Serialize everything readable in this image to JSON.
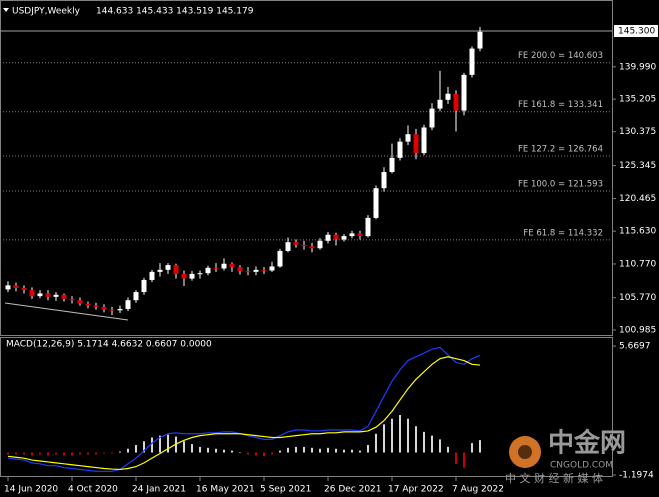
{
  "chart_data": [
    {
      "type": "candlestick",
      "title": "USDJPY,Weekly",
      "title_values": "144.633 145.433 143.519 145.179",
      "categories": [
        "14 Jun 2020",
        null,
        null,
        null,
        null,
        null,
        null,
        null,
        "4 Oct 2020",
        null,
        null,
        null,
        null,
        null,
        null,
        null,
        "24 Jan 2021",
        null,
        null,
        null,
        null,
        null,
        null,
        null,
        "16 May 2021",
        null,
        null,
        null,
        null,
        null,
        null,
        null,
        "5 Sep 2021",
        null,
        null,
        null,
        null,
        null,
        null,
        null,
        "26 Dec 2021",
        null,
        null,
        null,
        null,
        null,
        null,
        null,
        "17 Apr 2022",
        null,
        null,
        null,
        null,
        null,
        null,
        null,
        "7 Aug 2022",
        null,
        null,
        null
      ],
      "open": [
        107.0,
        107.6,
        107.2,
        106.9,
        106.0,
        106.4,
        105.9,
        106.2,
        105.6,
        105.4,
        104.9,
        104.6,
        104.4,
        104.0,
        103.9,
        104.1,
        105.4,
        106.6,
        108.4,
        109.6,
        109.9,
        110.6,
        109.3,
        108.6,
        109.3,
        109.4,
        110.2,
        110.1,
        110.8,
        110.3,
        109.7,
        109.6,
        109.9,
        109.8,
        110.4,
        112.7,
        114.0,
        113.6,
        113.4,
        113.1,
        114.2,
        115.1,
        114.4,
        114.9,
        115.3,
        114.9,
        117.6,
        122.0,
        124.4,
        126.5,
        128.9,
        130.0,
        127.2,
        131.0,
        133.8,
        135.1,
        136.0,
        133.5,
        138.8,
        142.7
      ],
      "high": [
        108.2,
        108.0,
        107.6,
        107.3,
        106.9,
        106.9,
        106.6,
        106.4,
        106.0,
        105.8,
        105.2,
        105.0,
        104.8,
        104.4,
        104.6,
        105.8,
        106.9,
        108.7,
        109.9,
        110.9,
        110.9,
        110.8,
        109.8,
        109.7,
        109.8,
        110.5,
        110.9,
        111.6,
        111.0,
        110.6,
        110.3,
        110.4,
        110.3,
        111.1,
        113.0,
        114.7,
        114.4,
        114.2,
        113.9,
        114.6,
        115.5,
        115.4,
        115.2,
        115.7,
        115.7,
        118.0,
        122.4,
        125.1,
        128.6,
        129.4,
        131.3,
        130.8,
        131.4,
        134.6,
        139.4,
        137.0,
        136.5,
        139.1,
        143.0,
        145.9
      ],
      "low": [
        106.6,
        106.7,
        106.4,
        105.6,
        105.7,
        105.4,
        105.3,
        105.2,
        104.9,
        104.6,
        104.2,
        104.0,
        103.6,
        103.2,
        103.5,
        103.8,
        105.0,
        106.2,
        108.1,
        108.9,
        109.3,
        108.6,
        107.5,
        108.3,
        108.6,
        109.1,
        109.6,
        109.8,
        109.6,
        109.2,
        109.1,
        109.1,
        109.3,
        109.6,
        110.2,
        112.5,
        113.2,
        112.9,
        112.5,
        112.9,
        113.8,
        113.5,
        114.1,
        114.6,
        114.4,
        114.7,
        117.4,
        121.5,
        124.2,
        126.1,
        128.4,
        126.3,
        126.9,
        130.6,
        133.4,
        134.5,
        130.4,
        132.8,
        138.4,
        142.3
      ],
      "close": [
        107.6,
        107.2,
        106.9,
        106.0,
        106.4,
        105.9,
        106.2,
        105.6,
        105.4,
        104.9,
        104.6,
        104.4,
        104.0,
        103.9,
        104.1,
        105.4,
        106.6,
        108.4,
        109.6,
        109.9,
        110.6,
        109.3,
        108.6,
        109.3,
        109.4,
        110.2,
        110.1,
        110.8,
        110.3,
        109.7,
        109.6,
        109.9,
        109.8,
        110.4,
        112.7,
        114.0,
        113.6,
        113.4,
        113.1,
        114.2,
        115.1,
        114.4,
        114.9,
        115.3,
        114.9,
        117.6,
        122.0,
        124.4,
        126.5,
        128.9,
        130.0,
        127.2,
        131.0,
        133.8,
        135.1,
        136.0,
        133.5,
        138.8,
        142.7,
        145.18
      ],
      "up_color": "#ffffff",
      "down_color": "#e00000",
      "ylim": [
        100.24,
        149.6
      ],
      "yticks": [
        {
          "value": 139.99,
          "label": "139.990"
        },
        {
          "value": 135.205,
          "label": "135.205"
        },
        {
          "value": 130.375,
          "label": "130.375"
        },
        {
          "value": 125.345,
          "label": "125.345"
        },
        {
          "value": 120.465,
          "label": "120.465"
        },
        {
          "value": 115.63,
          "label": "115.630"
        },
        {
          "value": 110.77,
          "label": "110.770"
        },
        {
          "value": 105.77,
          "label": "105.770"
        },
        {
          "value": 100.985,
          "label": "100.985"
        }
      ],
      "current_price": {
        "value": 145.3,
        "label": "145.300"
      },
      "levels": [
        {
          "value": 140.603,
          "label": "FE 200.0 = 140.603"
        },
        {
          "value": 133.341,
          "label": "FE 161.8 = 133.341"
        },
        {
          "value": 126.764,
          "label": "FE 127.2 = 126.764"
        },
        {
          "value": 121.593,
          "label": "FE 100.0 = 121.593"
        },
        {
          "value": 114.332,
          "label": "FE 61.8 = 114.332"
        }
      ]
    },
    {
      "type": "macd",
      "title": "MACD(12,26,9) 5.1714 4.6632 0.6607 0.0000",
      "histogram": {
        "up_color": "#d8d8d8",
        "down_color": "#d00000",
        "values": [
          -0.1,
          -0.1,
          -0.1,
          -0.15,
          -0.1,
          -0.15,
          -0.1,
          -0.15,
          -0.15,
          -0.1,
          -0.1,
          -0.1,
          -0.05,
          -0.05,
          0.05,
          0.2,
          0.4,
          0.6,
          0.8,
          0.9,
          0.95,
          0.85,
          0.6,
          0.45,
          0.3,
          0.25,
          0.2,
          0.15,
          0.1,
          0.0,
          -0.1,
          -0.15,
          -0.2,
          -0.1,
          0.1,
          0.25,
          0.3,
          0.3,
          0.25,
          0.2,
          0.25,
          0.2,
          0.15,
          0.15,
          0.1,
          0.4,
          1.0,
          1.5,
          1.8,
          2.0,
          1.8,
          1.4,
          1.1,
          0.9,
          0.7,
          0.3,
          -0.6,
          -0.8,
          0.5,
          0.66
        ]
      },
      "lines": [
        {
          "color": "#1e3cff",
          "values": [
            -0.3,
            -0.35,
            -0.4,
            -0.55,
            -0.6,
            -0.7,
            -0.7,
            -0.8,
            -0.85,
            -0.9,
            -0.95,
            -1.0,
            -1.0,
            -1.0,
            -0.9,
            -0.6,
            -0.3,
            0.1,
            0.5,
            0.8,
            1.0,
            1.05,
            1.0,
            1.0,
            1.0,
            1.05,
            1.05,
            1.1,
            1.1,
            1.0,
            0.9,
            0.8,
            0.7,
            0.7,
            0.9,
            1.1,
            1.2,
            1.2,
            1.15,
            1.15,
            1.2,
            1.2,
            1.2,
            1.2,
            1.15,
            1.4,
            2.2,
            3.0,
            3.8,
            4.4,
            4.9,
            5.1,
            5.3,
            5.5,
            5.6,
            5.2,
            4.8,
            4.7,
            5.0,
            5.17
          ]
        },
        {
          "color": "#ffff00",
          "values": [
            -0.2,
            -0.25,
            -0.3,
            -0.4,
            -0.45,
            -0.5,
            -0.55,
            -0.6,
            -0.65,
            -0.7,
            -0.75,
            -0.8,
            -0.85,
            -0.88,
            -0.9,
            -0.85,
            -0.75,
            -0.55,
            -0.3,
            -0.05,
            0.2,
            0.45,
            0.65,
            0.8,
            0.9,
            0.95,
            1.0,
            1.0,
            1.0,
            1.0,
            0.95,
            0.9,
            0.85,
            0.8,
            0.8,
            0.85,
            0.9,
            0.95,
            1.0,
            1.0,
            1.05,
            1.05,
            1.1,
            1.1,
            1.1,
            1.15,
            1.35,
            1.7,
            2.2,
            2.8,
            3.4,
            3.9,
            4.3,
            4.7,
            5.0,
            5.1,
            5.0,
            4.9,
            4.7,
            4.66
          ]
        }
      ],
      "ylim": [
        -1.25,
        6.1
      ],
      "yticks": [
        5.6697,
        -1.1974
      ]
    }
  ],
  "watermark": {
    "brand": "中金网",
    "site": "CNGOLD.COM",
    "slogan": "中 文 财 经 新 媒 体"
  }
}
